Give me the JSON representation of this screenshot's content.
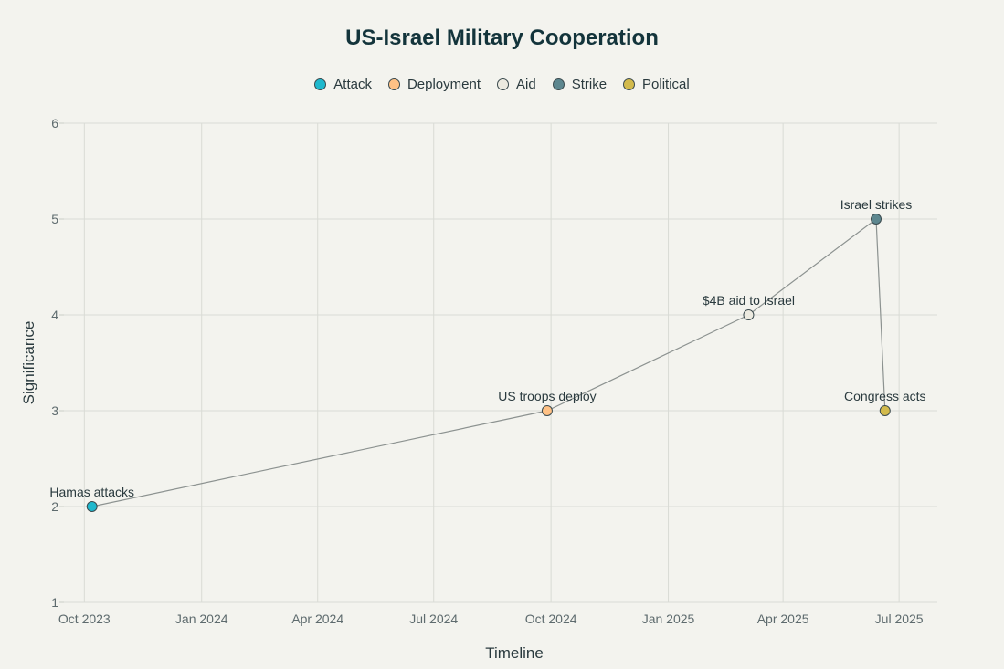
{
  "chart_data": {
    "type": "scatter",
    "title": "US-Israel Military Cooperation",
    "xlabel": "Timeline",
    "ylabel": "Significance",
    "ylim": [
      1,
      6
    ],
    "yticks": [
      1,
      2,
      3,
      4,
      5,
      6
    ],
    "xlim": [
      "2023-09-15",
      "2025-07-31"
    ],
    "xticks": [
      {
        "date": "2023-10-01",
        "label": "Oct 2023"
      },
      {
        "date": "2024-01-01",
        "label": "Jan 2024"
      },
      {
        "date": "2024-04-01",
        "label": "Apr 2024"
      },
      {
        "date": "2024-07-01",
        "label": "Jul 2024"
      },
      {
        "date": "2024-10-01",
        "label": "Oct 2024"
      },
      {
        "date": "2025-01-01",
        "label": "Jan 2025"
      },
      {
        "date": "2025-04-01",
        "label": "Apr 2025"
      },
      {
        "date": "2025-07-01",
        "label": "Jul 2025"
      }
    ],
    "grid": true,
    "legend_position": "top-center",
    "connect_points": true,
    "categories": [
      {
        "name": "Attack",
        "color": "#1fb8cd"
      },
      {
        "name": "Deployment",
        "color": "#ffc185"
      },
      {
        "name": "Aid",
        "color": "#eceae0"
      },
      {
        "name": "Strike",
        "color": "#5d878f"
      },
      {
        "name": "Political",
        "color": "#d2ba4c"
      }
    ],
    "points": [
      {
        "date": "2023-10-07",
        "y": 2,
        "label": "Hamas attacks",
        "category": "Attack"
      },
      {
        "date": "2024-09-28",
        "y": 3,
        "label": "US troops deploy",
        "category": "Deployment"
      },
      {
        "date": "2025-03-05",
        "y": 4,
        "label": "$4B aid to Israel",
        "category": "Aid"
      },
      {
        "date": "2025-06-13",
        "y": 5,
        "label": "Israel strikes",
        "category": "Strike"
      },
      {
        "date": "2025-06-20",
        "y": 3,
        "label": "Congress acts",
        "category": "Political"
      }
    ]
  }
}
